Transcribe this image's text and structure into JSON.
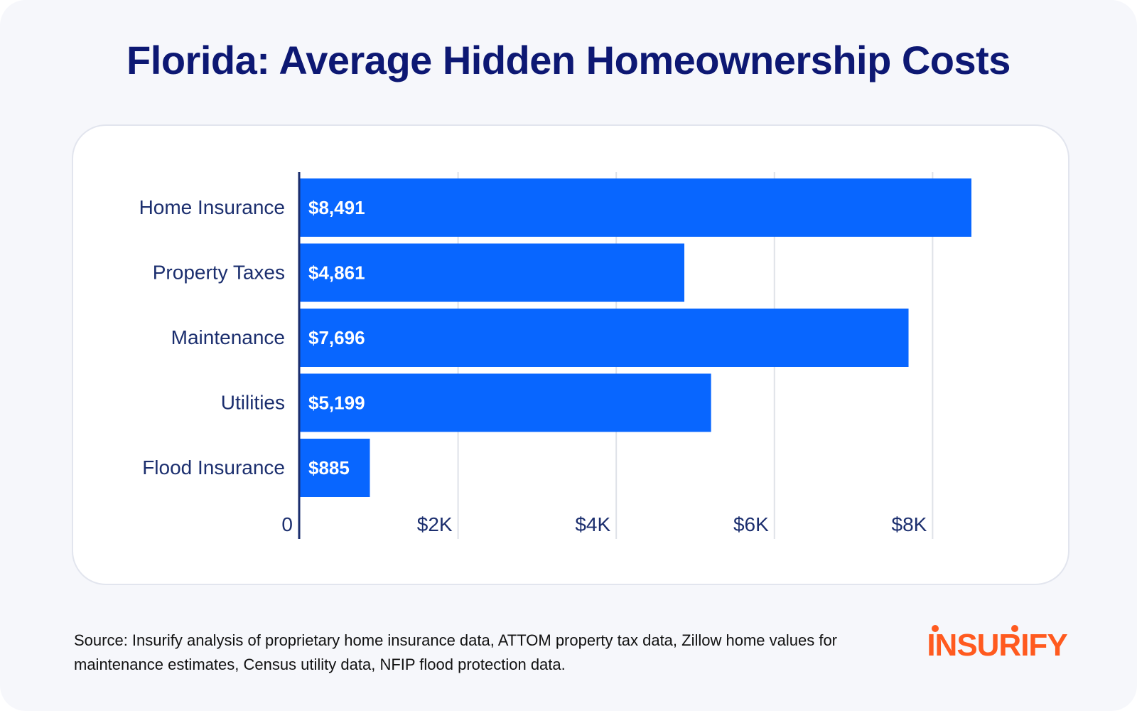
{
  "title": "Florida: Average Hidden Homeownership Costs",
  "source": "Source: Insurify analysis of proprietary home insurance data, ATTOM property tax data, Zillow home values for maintenance estimates, Census utility data, NFIP flood protection data.",
  "logo": {
    "text": "INSURIFY",
    "color": "#ff5a1f"
  },
  "colors": {
    "bar": "#0866ff",
    "title": "#0d1873",
    "axis_text": "#1b2e6e",
    "gridline": "#dfe2e8",
    "axis_line": "#1b2e6e",
    "bar_label": "#ffffff"
  },
  "chart_data": {
    "type": "bar",
    "orientation": "horizontal",
    "categories": [
      "Home Insurance",
      "Property Taxes",
      "Maintenance",
      "Utilities",
      "Flood Insurance"
    ],
    "values": [
      8491,
      4861,
      7696,
      5199,
      885
    ],
    "value_labels": [
      "$8,491",
      "$4,861",
      "$7,696",
      "$5,199",
      "$885"
    ],
    "xlim": [
      0,
      8491
    ],
    "x_ticks": [
      0,
      2000,
      4000,
      6000,
      8000
    ],
    "x_tick_labels": [
      "0",
      "$2K",
      "$4K",
      "$6K",
      "$8K"
    ],
    "grid": true
  }
}
